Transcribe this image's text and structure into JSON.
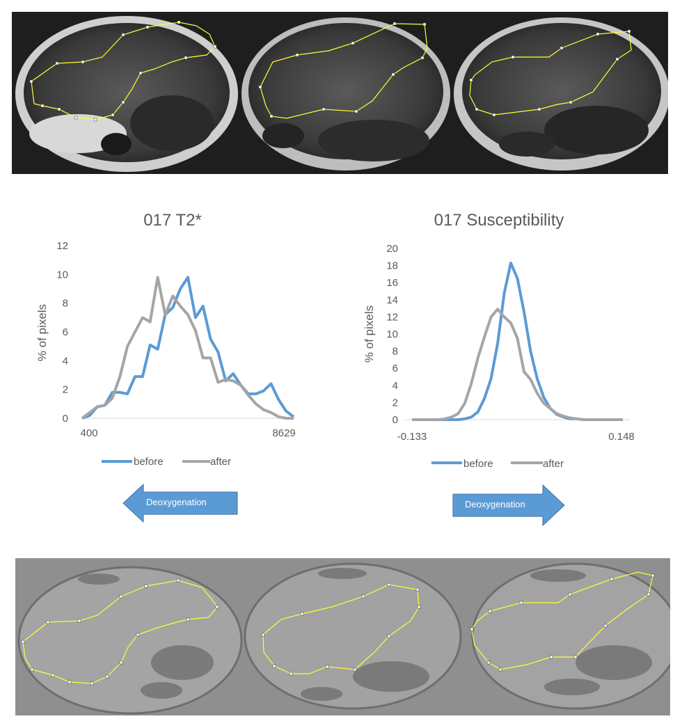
{
  "images": {
    "top": "T2* magnitude MRI slices with yellow ROI contours",
    "bottom": "Susceptibility map slices with yellow ROI contours"
  },
  "arrows": {
    "left_label": "Deoxygenation",
    "right_label": "Deoxygenation",
    "color": "#5b9bd5"
  },
  "colors": {
    "before": "#5b9bd5",
    "after": "#a5a5a5",
    "roi": "#ffff33"
  },
  "chart_data": [
    {
      "type": "line",
      "title": "017 T2*",
      "xlabel": "",
      "ylabel": "% of pixels",
      "ylim": [
        0,
        12
      ],
      "yticks": [
        "0",
        "2",
        "4",
        "6",
        "8",
        "10",
        "12"
      ],
      "xticklabels": {
        "first": "400",
        "last": "8629"
      },
      "grid": false,
      "legend": "bottom",
      "series": [
        {
          "name": "before",
          "color": "#5b9bd5",
          "values": [
            0,
            0.2,
            0.8,
            0.9,
            1.8,
            1.8,
            1.7,
            2.9,
            2.9,
            5.1,
            4.8,
            7.2,
            7.7,
            9.0,
            9.8,
            7.0,
            7.8,
            5.5,
            4.6,
            2.6,
            3.1,
            2.3,
            1.7,
            1.7,
            1.9,
            2.4,
            1.3,
            0.5,
            0.1
          ]
        },
        {
          "name": "after",
          "color": "#a5a5a5",
          "values": [
            0,
            0.4,
            0.8,
            0.9,
            1.4,
            2.9,
            5.0,
            6.0,
            7.0,
            6.7,
            9.8,
            7.2,
            8.5,
            7.8,
            7.2,
            6.1,
            4.2,
            4.2,
            2.5,
            2.7,
            2.6,
            2.3,
            1.6,
            1.0,
            0.6,
            0.4,
            0.1,
            0,
            0
          ]
        }
      ]
    },
    {
      "type": "line",
      "title": "017 Susceptibility",
      "xlabel": "",
      "ylabel": "% of pixels",
      "ylim": [
        0,
        20
      ],
      "yticks": [
        "0",
        "2",
        "4",
        "6",
        "8",
        "10",
        "12",
        "14",
        "16",
        "18",
        "20"
      ],
      "xticklabels": {
        "first": "-0.133",
        "last": "0.148"
      },
      "grid": false,
      "legend": "bottom",
      "series": [
        {
          "name": "before",
          "color": "#5b9bd5",
          "values": [
            0,
            0,
            0,
            0,
            0,
            0,
            0,
            0,
            0.1,
            0.3,
            0.9,
            2.5,
            4.8,
            8.9,
            14.8,
            18.3,
            16.5,
            12.6,
            8.0,
            4.8,
            2.6,
            1.3,
            0.6,
            0.3,
            0.1,
            0.1,
            0,
            0,
            0,
            0,
            0,
            0,
            0
          ]
        },
        {
          "name": "after",
          "color": "#a5a5a5",
          "values": [
            0,
            0,
            0,
            0,
            0,
            0.1,
            0.3,
            0.7,
            1.9,
            4.2,
            7.2,
            9.7,
            12.0,
            12.9,
            12.0,
            11.3,
            9.5,
            5.6,
            4.7,
            3.1,
            1.9,
            1.3,
            0.7,
            0.4,
            0.2,
            0.1,
            0,
            0,
            0,
            0,
            0,
            0,
            0
          ]
        }
      ]
    }
  ]
}
